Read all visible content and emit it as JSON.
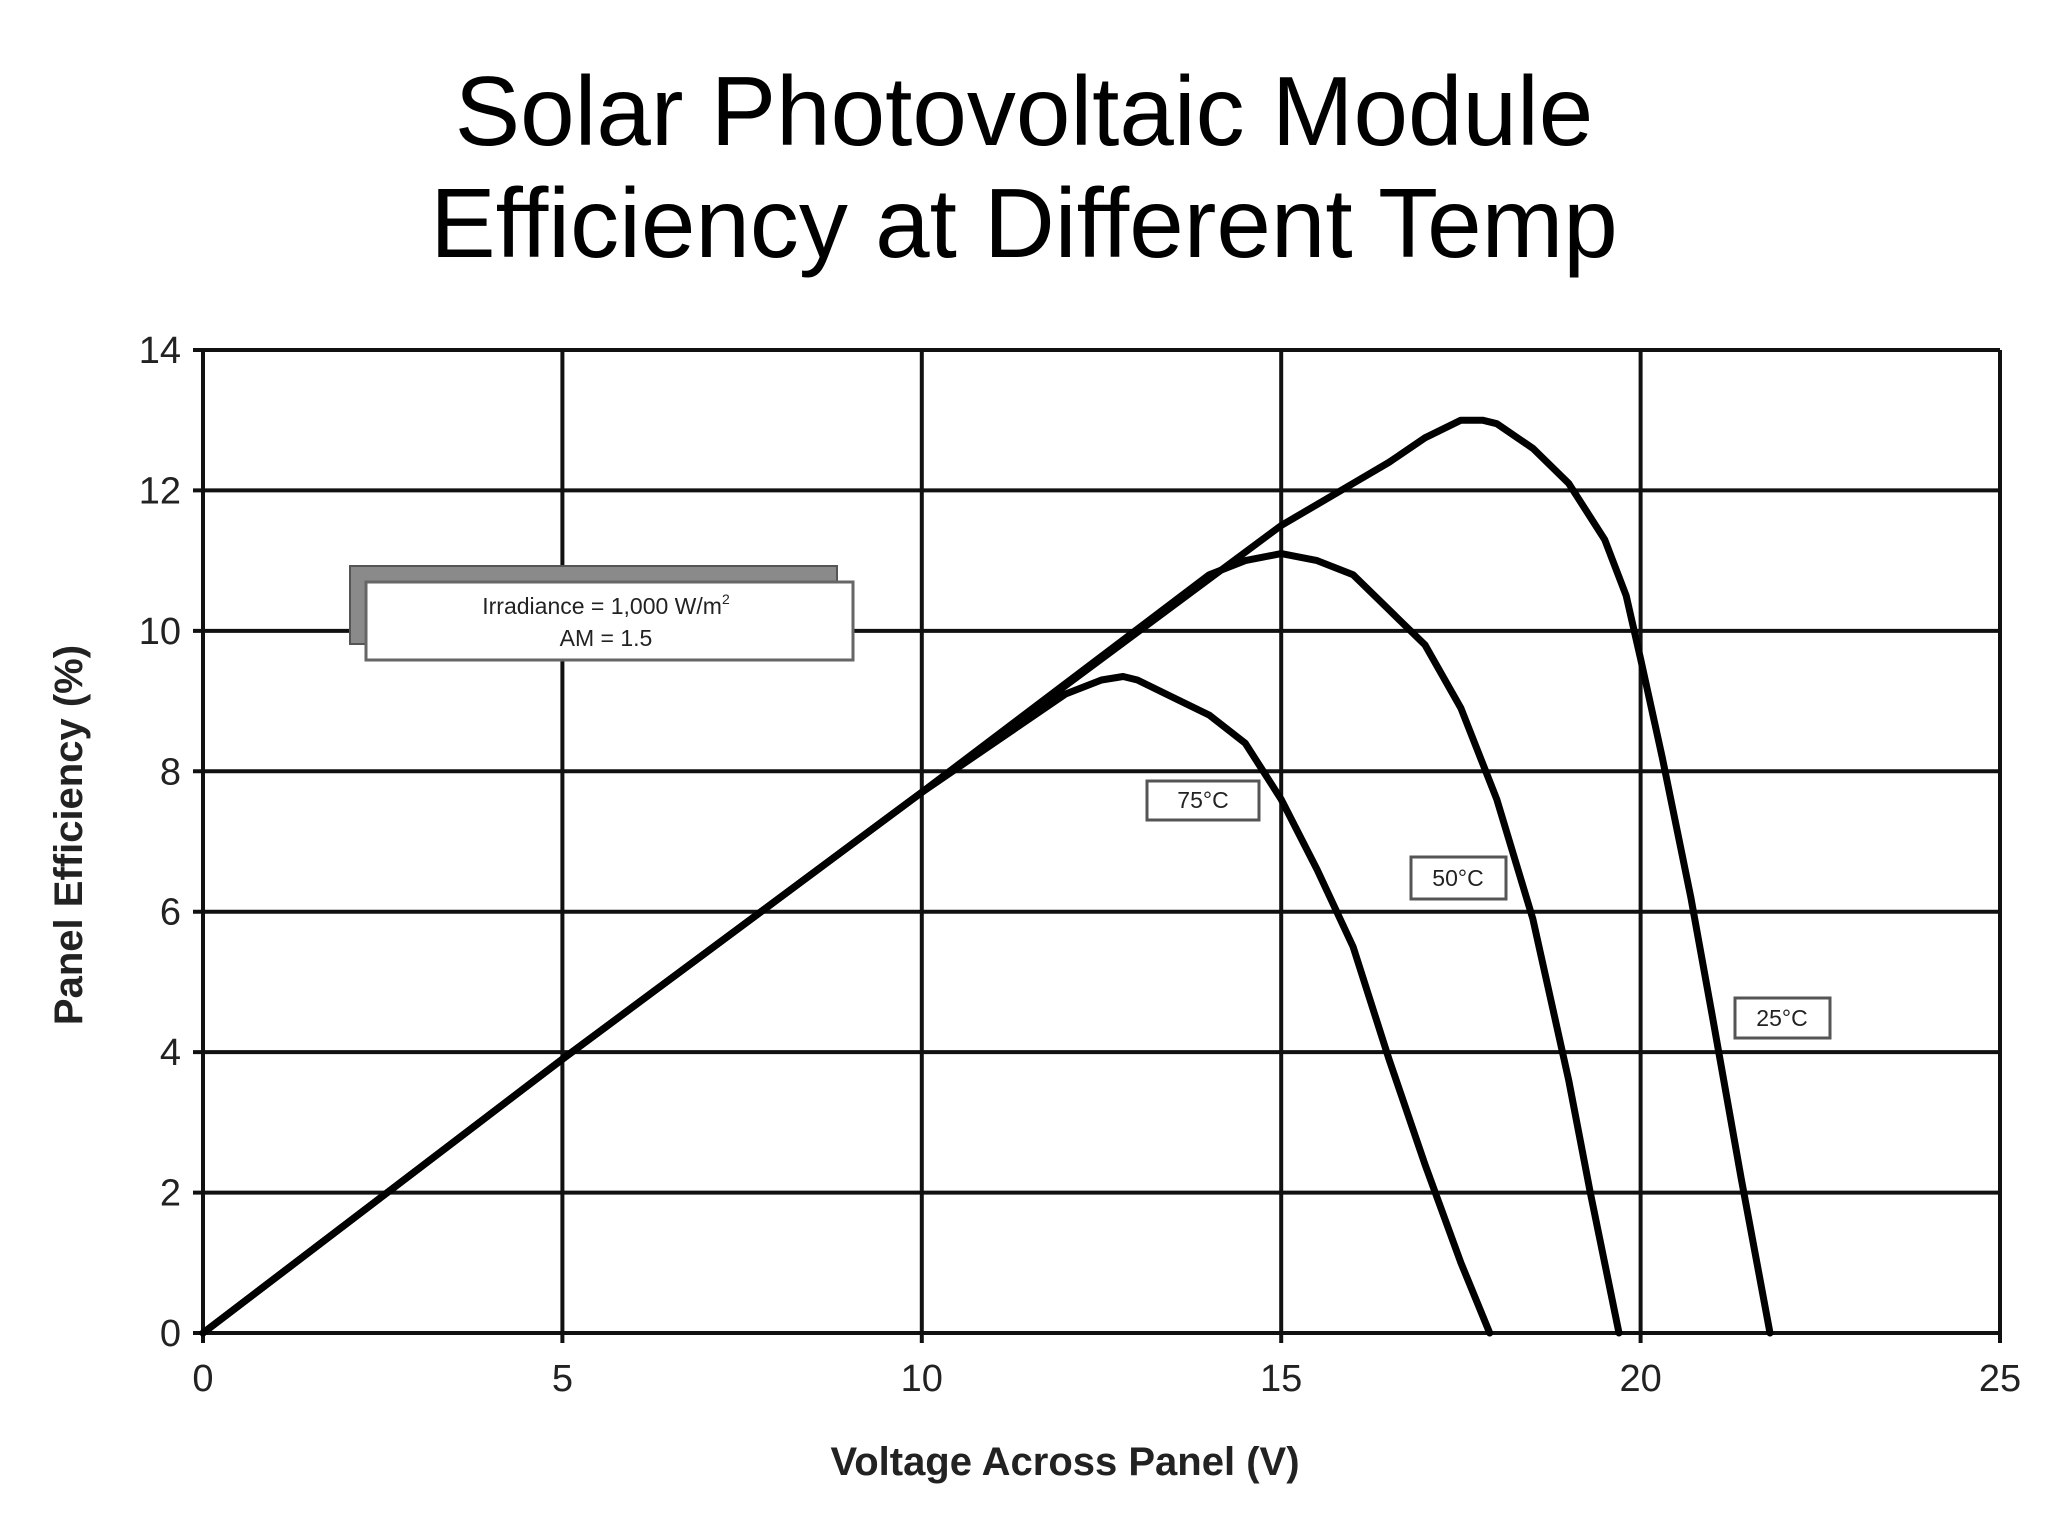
{
  "chart_data": {
    "type": "line",
    "title_lines": [
      "Solar Photovoltaic Module",
      "Efficiency at Different Temp"
    ],
    "xlabel": "Voltage Across Panel (V)",
    "ylabel": "Panel Efficiency (%)",
    "xlim": [
      0,
      25
    ],
    "ylim": [
      0,
      14
    ],
    "xticks": [
      0,
      5,
      10,
      15,
      20,
      25
    ],
    "yticks": [
      0,
      2,
      4,
      6,
      8,
      10,
      12,
      14
    ],
    "grid": true,
    "series": [
      {
        "name": "25°C",
        "x": [
          0,
          5,
          10,
          15,
          16,
          16.5,
          17,
          17.5,
          17.8,
          18,
          18.5,
          19,
          19.5,
          19.8,
          20,
          20.3,
          20.7,
          21,
          21.4,
          21.8
        ],
        "y": [
          0,
          3.9,
          7.7,
          11.5,
          12.1,
          12.4,
          12.75,
          13.0,
          13.0,
          12.95,
          12.6,
          12.1,
          11.3,
          10.5,
          9.6,
          8.2,
          6.2,
          4.5,
          2.2,
          0
        ]
      },
      {
        "name": "50°C",
        "x": [
          0,
          5,
          10,
          14,
          14.5,
          15,
          15.5,
          16,
          16.5,
          17,
          17.5,
          18,
          18.5,
          19,
          19.3,
          19.7
        ],
        "y": [
          0,
          3.9,
          7.7,
          10.8,
          11.0,
          11.1,
          11.0,
          10.8,
          10.3,
          9.8,
          8.9,
          7.6,
          5.9,
          3.6,
          2.0,
          0
        ]
      },
      {
        "name": "75°C",
        "x": [
          0,
          5,
          10,
          12,
          12.5,
          12.8,
          13,
          13.5,
          14,
          14.5,
          15,
          15.5,
          16,
          16.5,
          17,
          17.5,
          17.9
        ],
        "y": [
          0,
          3.9,
          7.7,
          9.1,
          9.3,
          9.35,
          9.3,
          9.05,
          8.8,
          8.4,
          7.6,
          6.6,
          5.5,
          3.9,
          2.4,
          1.0,
          0
        ]
      }
    ],
    "series_labels": [
      "75°C",
      "50°C",
      "25°C"
    ],
    "annotation_box": {
      "line1": "Irradiance = 1,000 W/m",
      "line1_superscript": "2",
      "line2": "AM = 1.5"
    }
  }
}
